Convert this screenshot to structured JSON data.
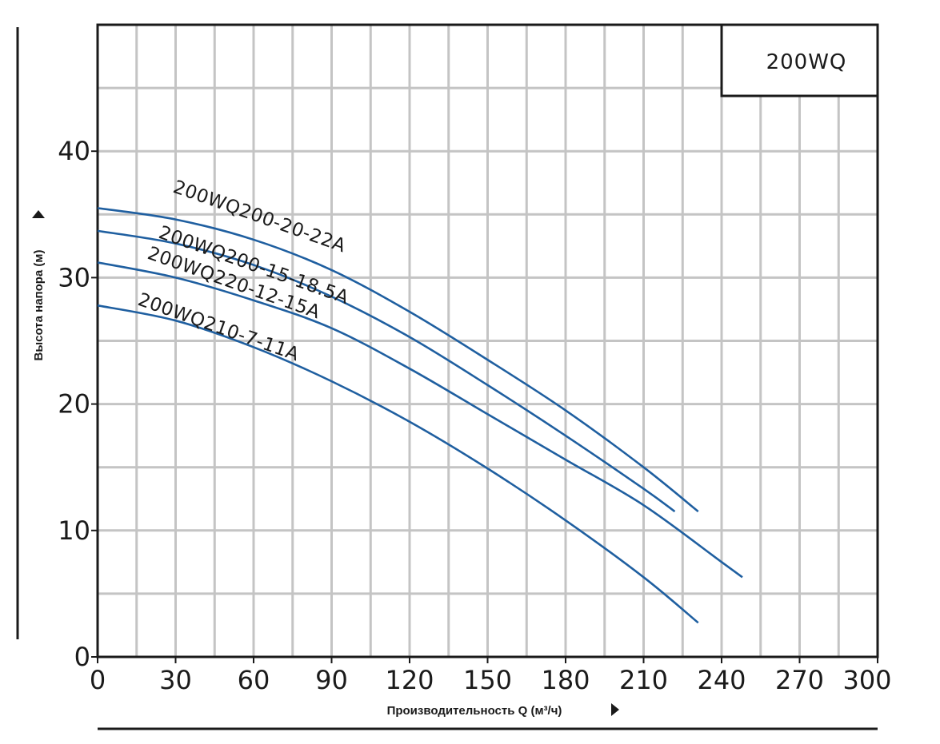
{
  "chart_data": {
    "type": "line",
    "title": "200WQ",
    "xlabel": "Производительность Q (м³/ч)",
    "ylabel": "Высота напора (м)",
    "xlim": [
      0,
      300
    ],
    "ylim": [
      0,
      50
    ],
    "x_ticks": [
      0,
      30,
      60,
      90,
      120,
      150,
      180,
      210,
      240,
      270,
      300
    ],
    "y_ticks": [
      0,
      10,
      20,
      30,
      40
    ],
    "grid": true,
    "series": [
      {
        "name": "200WQ200-20-22A",
        "color": "#1f5fa0",
        "x": [
          0,
          30,
          60,
          90,
          120,
          150,
          180,
          210,
          231
        ],
        "y": [
          35.5,
          34.6,
          33.0,
          30.6,
          27.3,
          23.5,
          19.5,
          15.0,
          11.5
        ]
      },
      {
        "name": "200WQ200-15-18.5A",
        "color": "#1f5fa0",
        "x": [
          0,
          30,
          60,
          90,
          120,
          150,
          180,
          210,
          222
        ],
        "y": [
          33.7,
          32.7,
          31.0,
          28.5,
          25.3,
          21.5,
          17.5,
          13.3,
          11.5
        ]
      },
      {
        "name": "200WQ220-12-15A",
        "color": "#1f5fa0",
        "x": [
          0,
          30,
          60,
          90,
          120,
          150,
          180,
          210,
          240,
          248
        ],
        "y": [
          31.2,
          30.0,
          28.2,
          26.0,
          22.8,
          19.2,
          15.6,
          12.0,
          7.5,
          6.3
        ]
      },
      {
        "name": "200WQ210-7-11A",
        "color": "#1f5fa0",
        "x": [
          0,
          30,
          60,
          90,
          120,
          150,
          180,
          210,
          231
        ],
        "y": [
          27.8,
          26.6,
          24.5,
          21.8,
          18.6,
          14.9,
          10.8,
          6.3,
          2.7
        ]
      }
    ]
  }
}
